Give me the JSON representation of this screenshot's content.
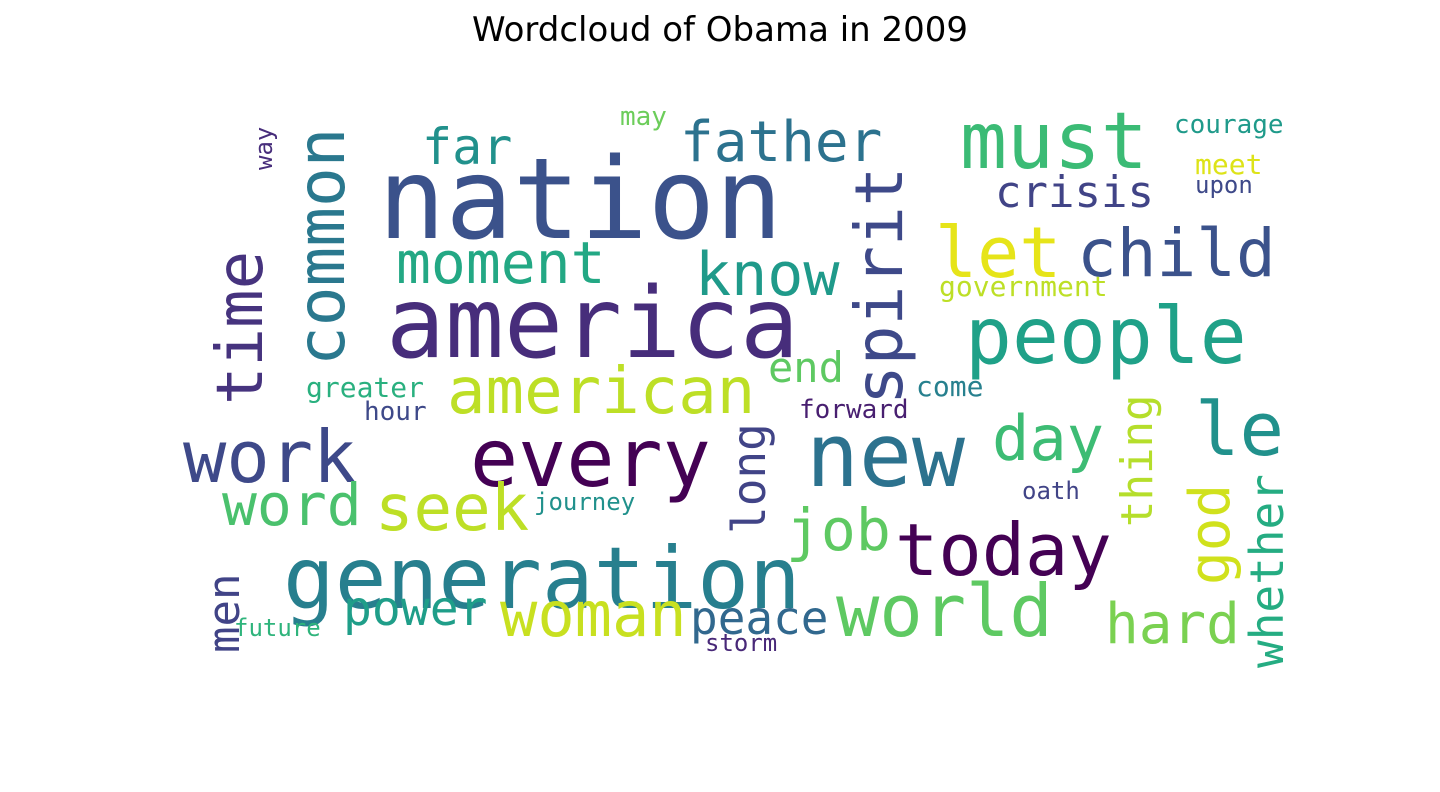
{
  "chart_data": {
    "type": "wordcloud",
    "title": "Wordcloud of Obama in 2009",
    "words": [
      {
        "text": "nation",
        "color": "#3b528b"
      },
      {
        "text": "america",
        "color": "#472d7b"
      },
      {
        "text": "new",
        "color": "#2c728e"
      },
      {
        "text": "every",
        "color": "#440154"
      },
      {
        "text": "generation",
        "color": "#277f8e"
      },
      {
        "text": "must",
        "color": "#3bbb75"
      },
      {
        "text": "people",
        "color": "#1fa188"
      },
      {
        "text": "work",
        "color": "#3e4989"
      },
      {
        "text": "today",
        "color": "#440154"
      },
      {
        "text": "world",
        "color": "#5ec962"
      },
      {
        "text": "american",
        "color": "#bddf26"
      },
      {
        "text": "common",
        "color": "#2a788e"
      },
      {
        "text": "father",
        "color": "#2c728e"
      },
      {
        "text": "let",
        "color": "#e6e419"
      },
      {
        "text": "child",
        "color": "#3b528b"
      },
      {
        "text": "spirit",
        "color": "#3e4989"
      },
      {
        "text": "time",
        "color": "#46337e"
      },
      {
        "text": "know",
        "color": "#1f9a8a"
      },
      {
        "text": "moment",
        "color": "#23a884"
      },
      {
        "text": "le",
        "color": "#21918c"
      },
      {
        "text": "seek",
        "color": "#bddf26"
      },
      {
        "text": "woman",
        "color": "#c8e020"
      },
      {
        "text": "word",
        "color": "#4ac16d"
      },
      {
        "text": "day",
        "color": "#3dbc74"
      },
      {
        "text": "job",
        "color": "#5ec962"
      },
      {
        "text": "far",
        "color": "#21918c"
      },
      {
        "text": "hard",
        "color": "#7ad151"
      },
      {
        "text": "power",
        "color": "#1f9e89"
      },
      {
        "text": "peace",
        "color": "#31688e"
      },
      {
        "text": "god",
        "color": "#d0e11c"
      },
      {
        "text": "long",
        "color": "#414487"
      },
      {
        "text": "whether",
        "color": "#25ac82"
      },
      {
        "text": "crisis",
        "color": "#414487"
      },
      {
        "text": "end",
        "color": "#5ec962"
      },
      {
        "text": "men",
        "color": "#414487"
      },
      {
        "text": "thing",
        "color": "#b5de2b"
      },
      {
        "text": "government",
        "color": "#bddf26"
      },
      {
        "text": "greater",
        "color": "#2ab07f"
      },
      {
        "text": "forward",
        "color": "#481f70"
      },
      {
        "text": "come",
        "color": "#27808e"
      },
      {
        "text": "hour",
        "color": "#3e4989"
      },
      {
        "text": "journey",
        "color": "#21918c"
      },
      {
        "text": "oath",
        "color": "#414487"
      },
      {
        "text": "future",
        "color": "#2fb47c"
      },
      {
        "text": "storm",
        "color": "#482878"
      },
      {
        "text": "may",
        "color": "#6ccd5a"
      },
      {
        "text": "courage",
        "color": "#1f9a8a"
      },
      {
        "text": "meet",
        "color": "#dde318"
      },
      {
        "text": "upon",
        "color": "#3e4989"
      },
      {
        "text": "way",
        "color": "#472d7b"
      }
    ]
  }
}
